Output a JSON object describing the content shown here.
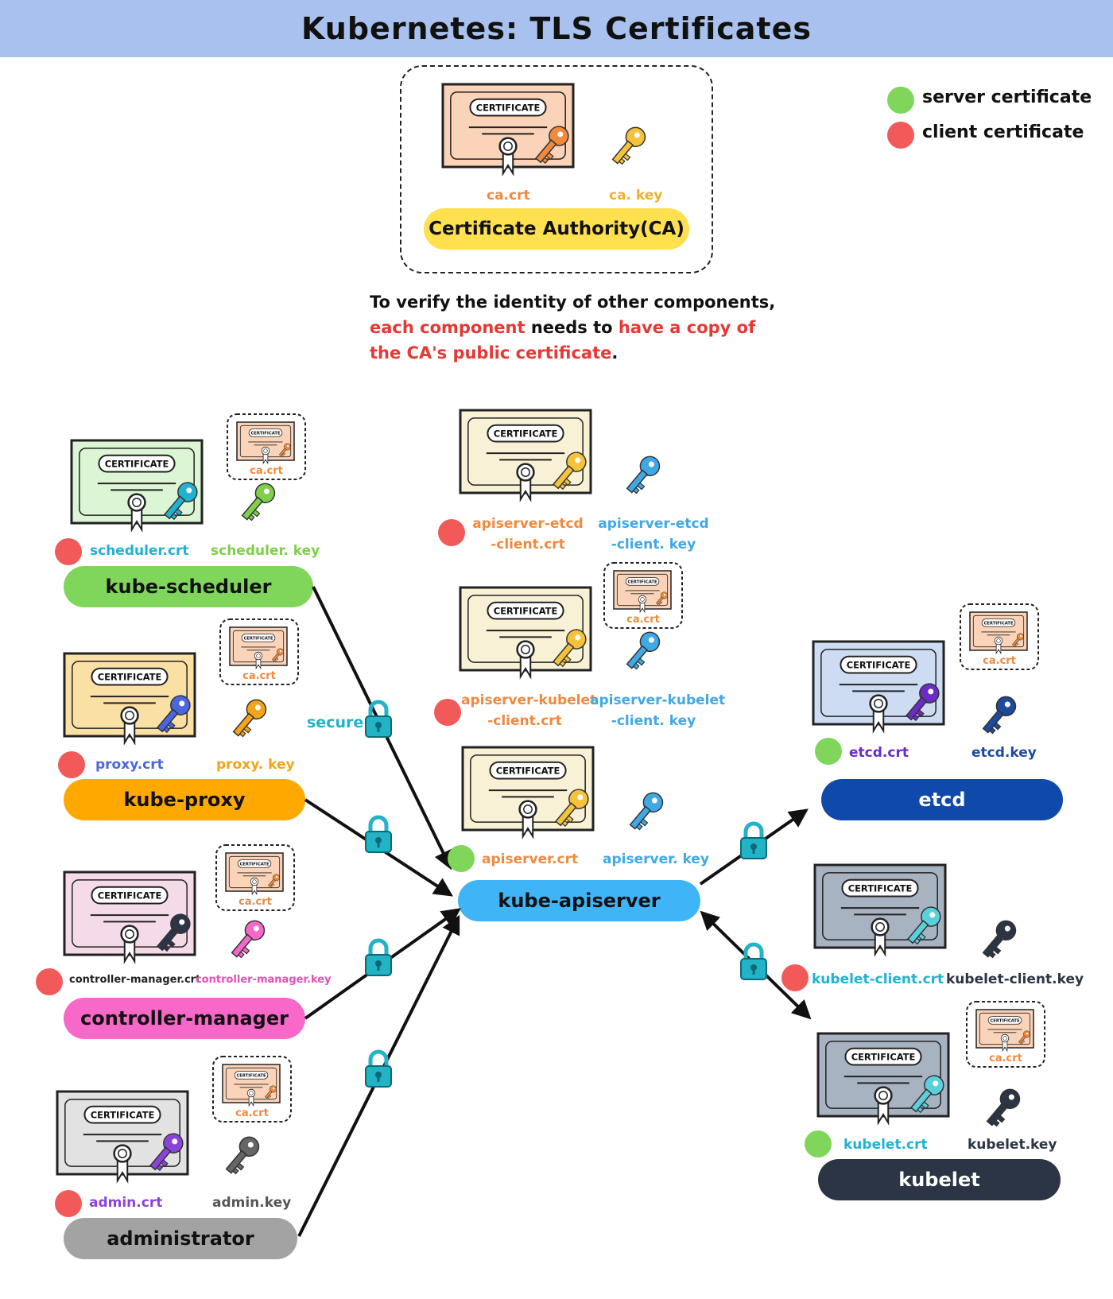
{
  "title": "Kubernetes: TLS Certificates",
  "legend": {
    "server": "server certificate",
    "client": "client certificate",
    "server_color": "#7fd65a",
    "client_color": "#f25a5a"
  },
  "cert_word": "CERTIFICATE",
  "ca": {
    "crt": "ca.crt",
    "key": "ca. key",
    "label": "Certificate Authority(CA)"
  },
  "note": {
    "p1": "To verify the identity of other components,",
    "p2": "each component",
    "p3": " needs to ",
    "p4": "have a copy of",
    "p5": "the CA's public certificate",
    "p6": "."
  },
  "secure": "secure",
  "small_ca": "ca.crt",
  "scheduler": {
    "label": "kube-scheduler",
    "crt": "scheduler.crt",
    "key": "scheduler. key"
  },
  "proxy": {
    "label": "kube-proxy",
    "crt": "proxy.crt",
    "key": "proxy. key"
  },
  "cm": {
    "label": "controller-manager",
    "crt": "controller-manager.crt",
    "key": "controller-manager.key"
  },
  "admin": {
    "label": "administrator",
    "crt": "admin.crt",
    "key": "admin.key"
  },
  "apiserver": {
    "label": "kube-apiserver",
    "etcd_crt1": "apiserver-etcd",
    "etcd_crt2": "-client.crt",
    "etcd_key1": "apiserver-etcd",
    "etcd_key2": "-client. key",
    "kubelet_crt1": "apiserver-kubelet",
    "kubelet_crt2": "-client.crt",
    "kubelet_key1": "apiserver-kubelet",
    "kubelet_key2": "-client. key",
    "crt": "apiserver.crt",
    "key": "apiserver. key"
  },
  "etcd": {
    "label": "etcd",
    "crt": "etcd.crt",
    "key": "etcd.key"
  },
  "kubelet": {
    "label": "kubelet",
    "client_crt": "kubelet-client.crt",
    "client_key": "kubelet-client.key",
    "crt": "kubelet.crt",
    "key": "kubelet.key"
  }
}
